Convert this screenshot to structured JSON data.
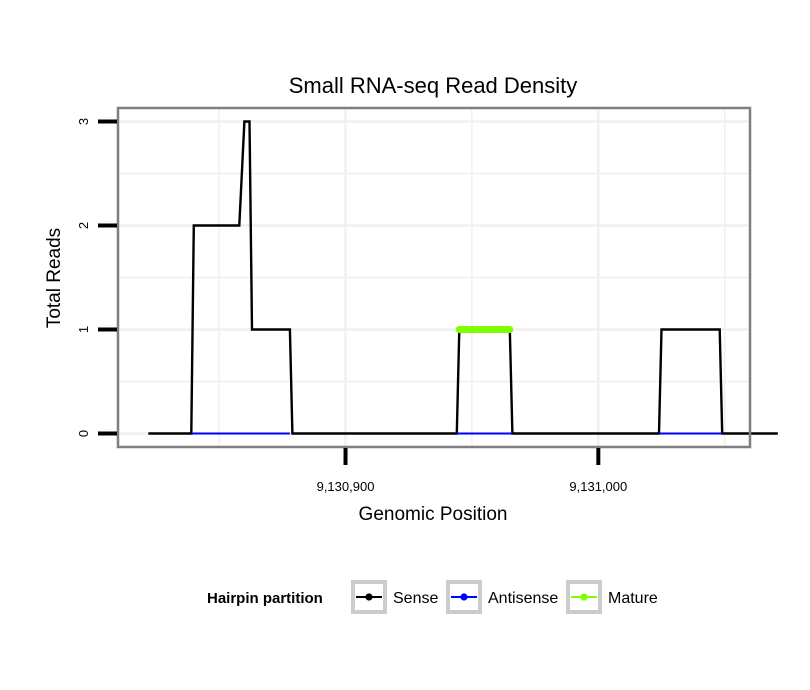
{
  "chart_data": {
    "type": "line",
    "title": "Small RNA-seq Read Density",
    "xlabel": "Genomic Position",
    "ylabel": "Total Reads",
    "xlim": [
      9130810,
      9131060
    ],
    "ylim": [
      -0.13,
      3.13
    ],
    "x_ticks": [
      9130900,
      9131000
    ],
    "x_tick_labels": [
      "9,130,900",
      "9,131,000"
    ],
    "y_ticks": [
      0,
      1,
      2,
      3
    ],
    "y_tick_labels": [
      "0",
      "1",
      "2",
      "3"
    ],
    "grid": true,
    "legend": {
      "title": "Hairpin partition",
      "position": "bottom",
      "entries": [
        {
          "label": "Sense",
          "color": "#000000"
        },
        {
          "label": "Antisense",
          "color": "#0000ff"
        },
        {
          "label": "Mature",
          "color": "#7fff00"
        }
      ]
    },
    "series": [
      {
        "name": "Sense",
        "color": "#000000",
        "x": [
          9130822,
          9130839,
          9130840,
          9130858,
          9130860,
          9130862,
          9130863,
          9130878,
          9130879,
          9130944,
          9130945,
          9130965,
          9130966,
          9131024,
          9131025,
          9131048,
          9131049,
          9131071
        ],
        "y": [
          0,
          0,
          2,
          2,
          3,
          3,
          1,
          1,
          0,
          0,
          1,
          1,
          0,
          0,
          1,
          1,
          0,
          0
        ]
      },
      {
        "name": "Antisense",
        "color": "#0000ff",
        "x": [
          9130839,
          9130878,
          9130944,
          9130966,
          9131024,
          9131049
        ],
        "y": [
          0,
          0,
          0,
          0,
          0,
          0
        ],
        "segments": [
          [
            0,
            1
          ],
          [
            2,
            3
          ],
          [
            4,
            5
          ]
        ]
      },
      {
        "name": "Mature",
        "color": "#7fff00",
        "x": [
          9130945,
          9130965
        ],
        "y": [
          1,
          1
        ]
      }
    ]
  }
}
